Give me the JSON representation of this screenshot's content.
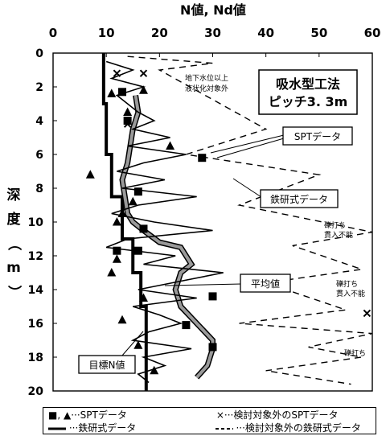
{
  "chart_data": {
    "type": "line",
    "title": "吸水型工法\nピッチ3. 3m",
    "xlabel": "N値, Nd値",
    "ylabel": "深度（m）",
    "xlim": [
      0,
      60
    ],
    "ylim": [
      0,
      20
    ],
    "y_inverted": true,
    "x_ticks": [
      "0",
      "10",
      "20",
      "30",
      "40",
      "50",
      "60"
    ],
    "y_ticks": [
      "0",
      "2",
      "4",
      "6",
      "8",
      "10",
      "12",
      "14",
      "16",
      "18",
      "20"
    ],
    "legend": [
      "■, ▲···SPTデータ",
      "×···検討対象外のSPTデータ",
      "···鉄研式データ",
      "···検討対象外の鉄研式データ"
    ],
    "annotations": {
      "groundwater": "地下水位以上\n液状化対象外",
      "spt": "SPTデータ",
      "tekken": "鉄研式データ",
      "average": "平均値",
      "target": "目標N値",
      "gravel1": "礫打ち\n貫入不能",
      "gravel2": "礫打ち\n貫入不能",
      "gravel3": "礫打ち"
    },
    "series": [
      {
        "name": "目標N値",
        "x": [
          9.5,
          9.5,
          10,
          10,
          11,
          11,
          13,
          13,
          15,
          15,
          16.5,
          16.5,
          17.5,
          17.5
        ],
        "y": [
          0,
          3,
          3,
          6,
          6,
          8.5,
          8.5,
          11,
          11,
          13,
          13,
          15,
          15,
          20
        ]
      },
      {
        "name": "平均値",
        "x": [
          15.5,
          16,
          15,
          14.5,
          14,
          13,
          13.5,
          14,
          15,
          17,
          20,
          24,
          26,
          24,
          23,
          24,
          27,
          30,
          30,
          29,
          27
        ],
        "y": [
          2.5,
          3.5,
          4.5,
          5.5,
          6.5,
          7.5,
          8.5,
          9.5,
          10,
          10.5,
          11.2,
          11.5,
          12.5,
          13,
          14,
          15,
          16,
          17,
          17.5,
          18.5,
          19.2
        ]
      },
      {
        "name": "鉄研式データ",
        "x": [
          10,
          15,
          11,
          17,
          12,
          14,
          16,
          19,
          15,
          22,
          14,
          25,
          17,
          12,
          21,
          13,
          27,
          16,
          11,
          19,
          30,
          14,
          10,
          23,
          17,
          32,
          24,
          16,
          27,
          15,
          20,
          24,
          18,
          15,
          26,
          17,
          21,
          16,
          18
        ],
        "y": [
          0.5,
          1.0,
          1.5,
          2.0,
          2.5,
          3.0,
          3.5,
          4.0,
          4.5,
          5.0,
          5.5,
          6.0,
          6.5,
          7.0,
          7.5,
          8.0,
          8.5,
          9.0,
          9.5,
          10.0,
          10.5,
          11.0,
          11.5,
          12.0,
          12.5,
          13.0,
          13.5,
          14.0,
          14.5,
          15.0,
          15.5,
          16.0,
          16.5,
          17.0,
          17.5,
          18.0,
          18.5,
          19.0,
          19.5
        ]
      },
      {
        "name": "検討対象外の鉄研式データ",
        "x": [
          14,
          30,
          20,
          40,
          25,
          50,
          35,
          60,
          45,
          58,
          40,
          55,
          35,
          60,
          48,
          58,
          40,
          56
        ],
        "y": [
          0.2,
          0.6,
          1.0,
          4.5,
          6.0,
          7.2,
          9.0,
          10.6,
          11.4,
          12.8,
          13.6,
          15.2,
          16.0,
          16.6,
          17.4,
          18.0,
          18.8,
          19.6
        ]
      },
      {
        "name": "SPT ■",
        "x": [
          13,
          14,
          16,
          28,
          17,
          12,
          16,
          30,
          25,
          30
        ],
        "y": [
          2.3,
          4.0,
          8.2,
          6.2,
          10.4,
          11.7,
          11.7,
          14.4,
          16.1,
          17.4
        ]
      },
      {
        "name": "SPT ▲",
        "x": [
          11,
          17,
          14,
          22,
          7,
          13,
          15,
          12,
          12,
          11,
          17,
          13,
          16,
          19
        ],
        "y": [
          2.4,
          2.2,
          3.5,
          5.5,
          7.2,
          9.5,
          8.8,
          10.0,
          12.2,
          13.0,
          14.5,
          15.8,
          17.3,
          18.8
        ]
      },
      {
        "name": "検討対象外のSPT ×",
        "x": [
          12,
          17,
          14,
          59
        ],
        "y": [
          1.2,
          1.2,
          4.2,
          15.4
        ]
      }
    ]
  },
  "colors": {
    "line": "#000000",
    "average_fill": "#9a9a9a",
    "axis": "#000000",
    "background": "#ffffff"
  }
}
